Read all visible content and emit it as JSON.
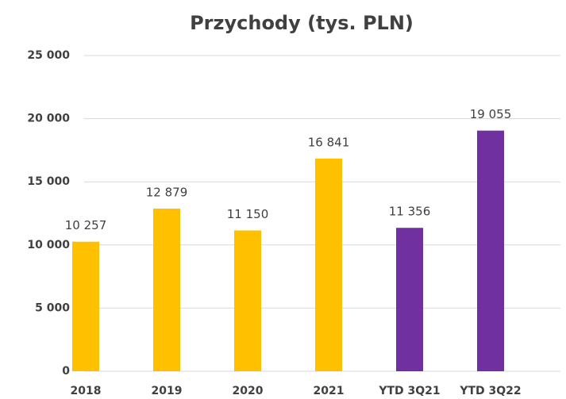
{
  "chart_data": {
    "type": "bar",
    "title": "Przychody (tys. PLN)",
    "categories": [
      "2018",
      "2019",
      "2020",
      "2021",
      "YTD 3Q21",
      "YTD 3Q22"
    ],
    "values": [
      10257,
      12879,
      11150,
      16841,
      11356,
      19055
    ],
    "value_labels": [
      "10 257",
      "12 879",
      "11 150",
      "16 841",
      "11 356",
      "19 055"
    ],
    "colors": [
      "#ffc000",
      "#ffc000",
      "#ffc000",
      "#ffc000",
      "#7030a0",
      "#7030a0"
    ],
    "ylim": [
      0,
      25000
    ],
    "yticks": [
      0,
      {
        "value": 5000,
        "label": "5 000"
      },
      {
        "value": 10000,
        "label": "10 000"
      },
      {
        "value": 15000,
        "label": "15 000"
      },
      {
        "value": 20000,
        "label": "20 000"
      },
      {
        "value": 25000,
        "label": "25 000"
      }
    ],
    "grid": true
  }
}
